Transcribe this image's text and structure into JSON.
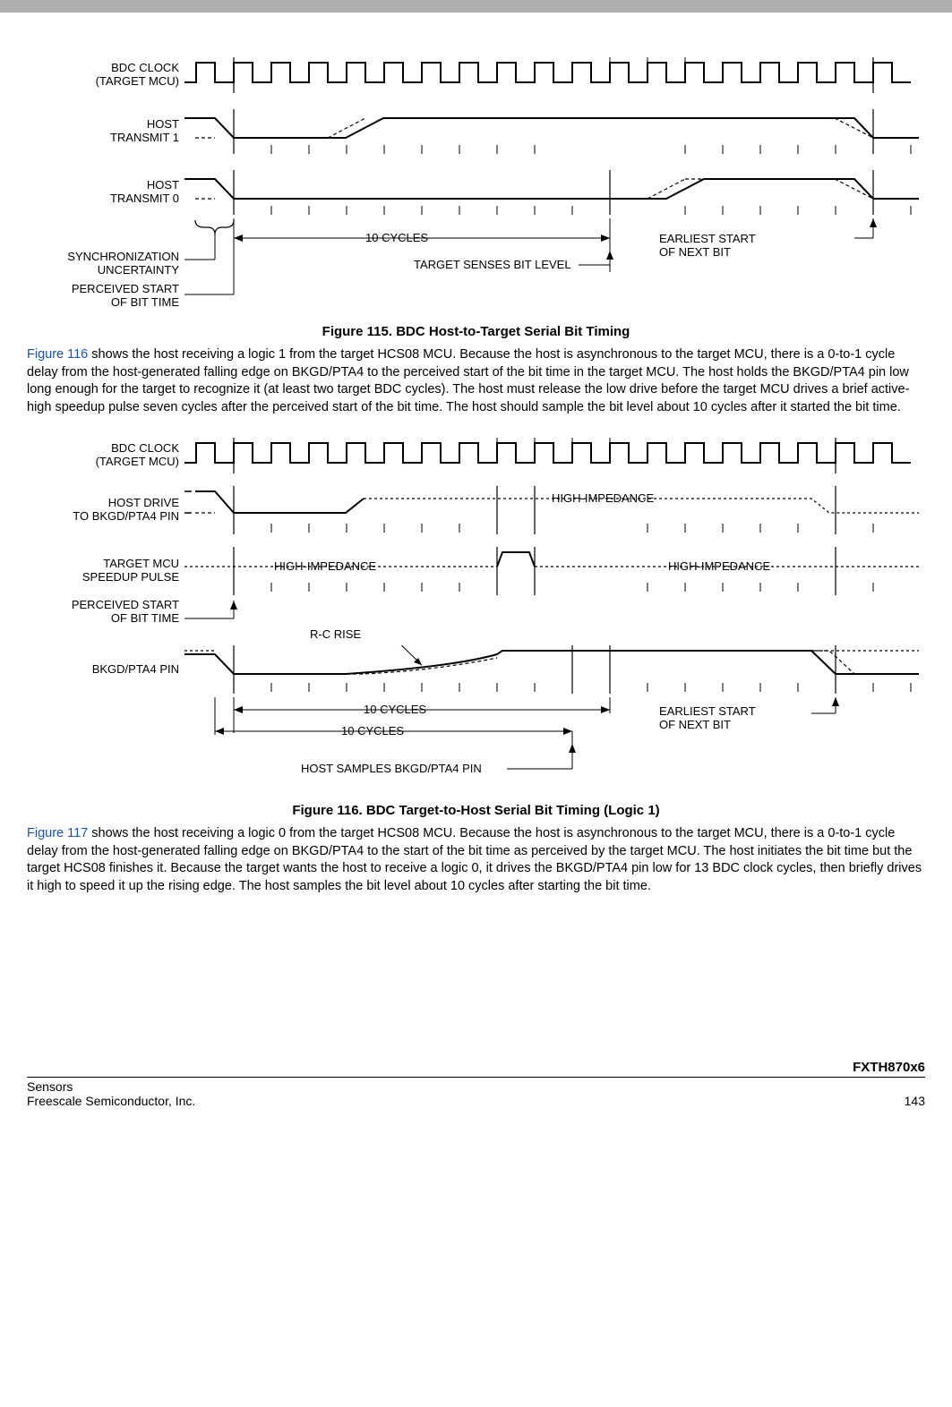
{
  "colors": {
    "link": "#1a4fc7",
    "stroke": "#000000",
    "topbar": "#b0b0b0",
    "bg": "#ffffff"
  },
  "fonts": {
    "body_size": 14.5,
    "label_size": 13,
    "caption_size": 15
  },
  "fig115": {
    "labels": {
      "bdc_clock_l1": "BDC CLOCK",
      "bdc_clock_l2": "(TARGET MCU)",
      "host_tx1_l1": "HOST",
      "host_tx1_l2": "TRANSMIT 1",
      "host_tx0_l1": "HOST",
      "host_tx0_l2": "TRANSMIT 0",
      "sync_l1": "SYNCHRONIZATION",
      "sync_l2": "UNCERTAINTY",
      "perceived_l1": "PERCEIVED START",
      "perceived_l2": "OF BIT TIME",
      "ten_cycles": "10 CYCLES",
      "target_senses": "TARGET SENSES BIT LEVEL",
      "earliest_l1": "EARLIEST START",
      "earliest_l2": "OF NEXT BIT"
    },
    "caption": "Figure 115. BDC Host-to-Target Serial Bit Timing",
    "timing": {
      "type": "timing-diagram",
      "cycles_shown": 18,
      "sense_at_cycle": 10,
      "clock_stroke_width": 2,
      "dash_pattern": "4 3"
    }
  },
  "para1": {
    "link_text": "Figure 116",
    "rest": " shows the host receiving a logic 1 from the target HCS08 MCU. Because the host is asynchronous to the target MCU, there is a 0-to-1 cycle delay from the host-generated falling edge on BKGD/PTA4 to the perceived start of the bit time in the target MCU. The host holds the BKGD/PTA4 pin low long enough for the target to recognize it (at least two target BDC cycles). The host must release the low drive before the target MCU drives a brief active-high speedup pulse seven cycles after the perceived start of the bit time. The host should sample the bit level about 10 cycles after it started the bit time."
  },
  "fig116": {
    "labels": {
      "bdc_clock_l1": "BDC CLOCK",
      "bdc_clock_l2": "(TARGET MCU)",
      "host_drive_l1": "HOST DRIVE",
      "host_drive_l2": "TO BKGD/PTA4 PIN",
      "target_pulse_l1": "TARGET MCU",
      "target_pulse_l2": "SPEEDUP PULSE",
      "perceived_l1": "PERCEIVED START",
      "perceived_l2": "OF BIT TIME",
      "bkgd_pin": "BKGD/PTA4 PIN",
      "hi_z": "HIGH-IMPEDANCE",
      "rc_rise": "R-C RISE",
      "ten_cycles": "10 CYCLES",
      "host_samples": "HOST SAMPLES BKGD/PTA4 PIN",
      "earliest_l1": "EARLIEST START",
      "earliest_l2": "OF NEXT BIT"
    },
    "caption": "Figure 116. BDC Target-to-Host Serial Bit Timing (Logic 1)",
    "timing": {
      "type": "timing-diagram",
      "cycles_shown": 18,
      "speedup_at_cycle": 7,
      "sample_at_cycle": 10,
      "clock_stroke_width": 2,
      "dash_pattern": "4 3"
    }
  },
  "para2": {
    "link_text": "Figure 117",
    "rest": " shows the host receiving a logic 0 from the target HCS08 MCU. Because the host is asynchronous to the target MCU, there is a 0-to-1 cycle delay from the host-generated falling edge on BKGD/PTA4 to the start of the bit time as perceived by the target MCU. The host initiates the bit time but the target HCS08 finishes it. Because the target wants the host to receive a logic 0, it drives the BKGD/PTA4 pin low for 13 BDC clock cycles, then briefly drives it high to speed it up the rising edge. The host samples the bit level about 10 cycles after starting the bit time."
  },
  "footer": {
    "product": "FXTH870x6",
    "left_l1": "Sensors",
    "left_l2": "Freescale Semiconductor, Inc.",
    "page": "143"
  }
}
